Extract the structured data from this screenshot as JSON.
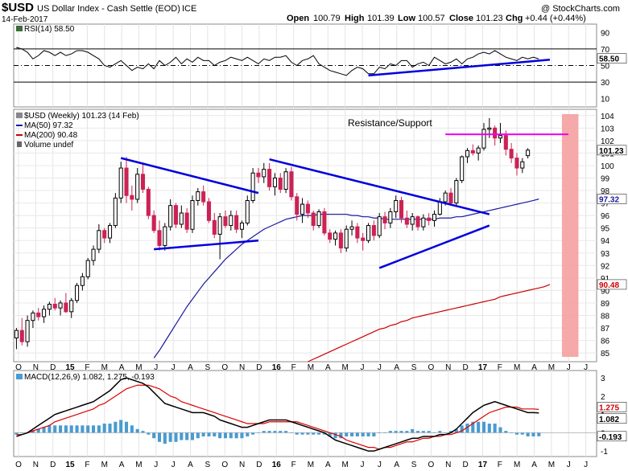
{
  "header": {
    "symbol": "$USD",
    "name": "US Dollar Index - Cash Settle (EOD)",
    "exchange": "ICE",
    "date": "14-Feb-2017",
    "open_label": "Open",
    "open": "100.79",
    "high_label": "High",
    "high": "101.39",
    "low_label": "Low",
    "low": "100.57",
    "close_label": "Close",
    "close": "101.23",
    "chg_label": "Chg",
    "chg": "+0.44 (+0.44%)",
    "watermark": "@ StockCharts.com"
  },
  "rsi": {
    "label": "RSI(14) 58.50",
    "value_tag": "58.50",
    "ticks": [
      "90",
      "70",
      "50",
      "30",
      "10"
    ],
    "levels": {
      "upper": 70,
      "mid": 50,
      "lower": 30
    },
    "values": [
      72,
      70,
      66,
      58,
      62,
      68,
      66,
      62,
      66,
      62,
      64,
      68,
      68,
      66,
      62,
      58,
      50,
      48,
      52,
      56,
      50,
      44,
      48,
      46,
      52,
      46,
      56,
      50,
      54,
      60,
      52,
      58,
      54,
      60,
      56,
      56,
      50,
      54,
      56,
      60,
      58,
      56,
      60,
      56,
      52,
      58,
      56,
      60,
      60,
      62,
      54,
      50,
      56,
      58,
      62,
      52,
      48,
      44,
      42,
      40,
      38,
      44,
      48,
      46,
      40,
      40,
      48,
      46,
      52,
      50,
      56,
      56,
      48,
      52,
      54,
      50,
      60,
      56,
      52,
      54,
      58,
      52,
      58,
      60,
      64,
      66,
      64,
      68,
      64,
      60,
      58,
      56,
      60,
      58,
      60,
      58
    ],
    "color": "#000000",
    "fill_color": "#3d6b3a"
  },
  "price": {
    "label_main": "$USD (Weekly) 101.23 (14 Feb)",
    "label_ma50": "MA(50) 97.32",
    "label_ma200": "MA(200) 90.48",
    "label_volume": "Volume undef",
    "annotation": "Resistance/Support",
    "last_tag": "101.23",
    "ma50_tag": "97.32",
    "ma200_tag": "90.48",
    "ticks": [
      "104",
      "103",
      "102",
      "101",
      "100",
      "99",
      "98",
      "97",
      "96",
      "95",
      "94",
      "93",
      "92",
      "91",
      "90",
      "89",
      "88",
      "87",
      "86",
      "85"
    ],
    "up_color": "#000000",
    "down_color": "#cc2255",
    "ma50_color": "#1a1aa0",
    "ma200_color": "#cc0000",
    "trendline_color": "#0000dd",
    "resistance_color": "#ee00ee",
    "shade_color": "#f4a0a0"
  },
  "macd": {
    "label": "MACD(12,26,9) 1.082, 1.275, -0.193",
    "macd_tag": "1.082",
    "signal_tag": "1.275",
    "hist_tag": "-0.193",
    "ticks": [
      "3",
      "2",
      "1",
      "0",
      "-1"
    ],
    "macd_color": "#000000",
    "signal_color": "#dd0000",
    "hist_color": "#4a9bcf"
  },
  "xaxis": {
    "months": [
      "O",
      "N",
      "D",
      "15",
      "F",
      "M",
      "A",
      "M",
      "J",
      "J",
      "A",
      "S",
      "O",
      "N",
      "D",
      "16",
      "F",
      "M",
      "A",
      "M",
      "J",
      "J",
      "A",
      "S",
      "O",
      "N",
      "D",
      "17",
      "F",
      "M",
      "A",
      "M",
      "J",
      "J"
    ]
  },
  "chart_data": {
    "type": "candlestick",
    "title": "$USD US Dollar Index - Cash Settle (EOD) ICE",
    "interval": "weekly",
    "x_start": "2014-10",
    "ylim": [
      84.3,
      104.5
    ],
    "candles": [
      {
        "o": 86.2,
        "h": 87.0,
        "l": 85.3,
        "c": 86.8
      },
      {
        "o": 86.8,
        "h": 87.8,
        "l": 85.6,
        "c": 85.9
      },
      {
        "o": 85.9,
        "h": 88.0,
        "l": 85.5,
        "c": 87.6
      },
      {
        "o": 87.6,
        "h": 88.4,
        "l": 87.0,
        "c": 88.2
      },
      {
        "o": 88.2,
        "h": 88.6,
        "l": 87.6,
        "c": 87.9
      },
      {
        "o": 87.9,
        "h": 88.8,
        "l": 87.4,
        "c": 88.5
      },
      {
        "o": 88.5,
        "h": 89.1,
        "l": 88.0,
        "c": 88.9
      },
      {
        "o": 88.9,
        "h": 89.4,
        "l": 88.4,
        "c": 88.6
      },
      {
        "o": 88.6,
        "h": 89.2,
        "l": 88.0,
        "c": 89.0
      },
      {
        "o": 89.0,
        "h": 89.8,
        "l": 88.2,
        "c": 88.3
      },
      {
        "o": 88.3,
        "h": 89.4,
        "l": 87.8,
        "c": 89.2
      },
      {
        "o": 89.2,
        "h": 90.6,
        "l": 89.0,
        "c": 90.4
      },
      {
        "o": 90.4,
        "h": 91.4,
        "l": 90.0,
        "c": 91.1
      },
      {
        "o": 91.1,
        "h": 92.6,
        "l": 90.9,
        "c": 92.4
      },
      {
        "o": 92.4,
        "h": 93.6,
        "l": 92.0,
        "c": 93.3
      },
      {
        "o": 93.3,
        "h": 95.3,
        "l": 93.0,
        "c": 94.8
      },
      {
        "o": 94.8,
        "h": 95.0,
        "l": 93.8,
        "c": 94.2
      },
      {
        "o": 94.2,
        "h": 95.4,
        "l": 93.8,
        "c": 95.2
      },
      {
        "o": 95.2,
        "h": 97.8,
        "l": 95.0,
        "c": 97.4
      },
      {
        "o": 97.4,
        "h": 100.3,
        "l": 97.0,
        "c": 99.8
      },
      {
        "o": 99.8,
        "h": 100.7,
        "l": 97.0,
        "c": 97.6
      },
      {
        "o": 97.6,
        "h": 98.4,
        "l": 96.4,
        "c": 97.3
      },
      {
        "o": 97.3,
        "h": 99.8,
        "l": 97.0,
        "c": 99.3
      },
      {
        "o": 99.3,
        "h": 100.2,
        "l": 97.8,
        "c": 98.1
      },
      {
        "o": 98.1,
        "h": 98.3,
        "l": 95.7,
        "c": 96.0
      },
      {
        "o": 96.0,
        "h": 96.4,
        "l": 94.6,
        "c": 94.8
      },
      {
        "o": 94.8,
        "h": 95.6,
        "l": 93.2,
        "c": 93.6
      },
      {
        "o": 93.6,
        "h": 95.4,
        "l": 93.2,
        "c": 95.1
      },
      {
        "o": 95.1,
        "h": 97.3,
        "l": 94.8,
        "c": 96.8
      },
      {
        "o": 96.8,
        "h": 97.0,
        "l": 95.0,
        "c": 95.3
      },
      {
        "o": 95.3,
        "h": 96.8,
        "l": 95.0,
        "c": 96.2
      },
      {
        "o": 96.2,
        "h": 96.6,
        "l": 94.6,
        "c": 94.9
      },
      {
        "o": 94.9,
        "h": 97.6,
        "l": 94.6,
        "c": 97.2
      },
      {
        "o": 97.2,
        "h": 98.2,
        "l": 96.8,
        "c": 97.9
      },
      {
        "o": 97.9,
        "h": 98.4,
        "l": 96.8,
        "c": 97.1
      },
      {
        "o": 97.1,
        "h": 97.4,
        "l": 95.4,
        "c": 95.6
      },
      {
        "o": 95.6,
        "h": 96.2,
        "l": 94.2,
        "c": 94.5
      },
      {
        "o": 94.5,
        "h": 96.2,
        "l": 92.5,
        "c": 95.9
      },
      {
        "o": 95.9,
        "h": 96.4,
        "l": 95.0,
        "c": 95.2
      },
      {
        "o": 95.2,
        "h": 96.4,
        "l": 94.8,
        "c": 96.0
      },
      {
        "o": 96.0,
        "h": 96.4,
        "l": 94.6,
        "c": 94.9
      },
      {
        "o": 94.9,
        "h": 95.6,
        "l": 94.2,
        "c": 95.4
      },
      {
        "o": 95.4,
        "h": 97.6,
        "l": 95.2,
        "c": 97.2
      },
      {
        "o": 97.2,
        "h": 99.8,
        "l": 97.0,
        "c": 99.4
      },
      {
        "o": 99.4,
        "h": 99.8,
        "l": 98.6,
        "c": 99.1
      },
      {
        "o": 99.1,
        "h": 100.2,
        "l": 98.6,
        "c": 99.7
      },
      {
        "o": 99.7,
        "h": 100.2,
        "l": 98.0,
        "c": 98.3
      },
      {
        "o": 98.3,
        "h": 99.4,
        "l": 97.6,
        "c": 99.0
      },
      {
        "o": 99.0,
        "h": 99.4,
        "l": 97.8,
        "c": 98.1
      },
      {
        "o": 98.1,
        "h": 99.8,
        "l": 97.8,
        "c": 99.5
      },
      {
        "o": 99.5,
        "h": 99.9,
        "l": 97.2,
        "c": 97.5
      },
      {
        "o": 97.5,
        "h": 97.8,
        "l": 95.6,
        "c": 96.1
      },
      {
        "o": 96.1,
        "h": 97.4,
        "l": 95.4,
        "c": 96.9
      },
      {
        "o": 96.9,
        "h": 97.2,
        "l": 95.8,
        "c": 96.2
      },
      {
        "o": 96.2,
        "h": 96.4,
        "l": 94.8,
        "c": 95.2
      },
      {
        "o": 95.2,
        "h": 96.5,
        "l": 95.0,
        "c": 96.3
      },
      {
        "o": 96.3,
        "h": 96.6,
        "l": 94.4,
        "c": 94.6
      },
      {
        "o": 94.6,
        "h": 94.9,
        "l": 93.8,
        "c": 94.1
      },
      {
        "o": 94.1,
        "h": 94.8,
        "l": 93.6,
        "c": 94.6
      },
      {
        "o": 94.6,
        "h": 94.9,
        "l": 93.0,
        "c": 93.4
      },
      {
        "o": 93.4,
        "h": 95.2,
        "l": 93.1,
        "c": 94.9
      },
      {
        "o": 94.9,
        "h": 95.6,
        "l": 94.4,
        "c": 95.1
      },
      {
        "o": 95.1,
        "h": 95.4,
        "l": 93.8,
        "c": 94.2
      },
      {
        "o": 94.2,
        "h": 94.6,
        "l": 93.2,
        "c": 94.0
      },
      {
        "o": 94.0,
        "h": 95.4,
        "l": 93.8,
        "c": 95.2
      },
      {
        "o": 95.2,
        "h": 95.6,
        "l": 94.0,
        "c": 94.4
      },
      {
        "o": 94.4,
        "h": 96.2,
        "l": 94.2,
        "c": 95.9
      },
      {
        "o": 95.9,
        "h": 96.3,
        "l": 94.9,
        "c": 95.4
      },
      {
        "o": 95.4,
        "h": 96.6,
        "l": 95.0,
        "c": 96.3
      },
      {
        "o": 96.3,
        "h": 97.6,
        "l": 95.8,
        "c": 97.2
      },
      {
        "o": 97.2,
        "h": 97.5,
        "l": 95.4,
        "c": 95.8
      },
      {
        "o": 95.8,
        "h": 96.4,
        "l": 95.0,
        "c": 95.3
      },
      {
        "o": 95.3,
        "h": 96.2,
        "l": 94.8,
        "c": 95.9
      },
      {
        "o": 95.9,
        "h": 96.0,
        "l": 94.8,
        "c": 95.1
      },
      {
        "o": 95.1,
        "h": 96.1,
        "l": 94.8,
        "c": 95.8
      },
      {
        "o": 95.8,
        "h": 96.2,
        "l": 95.2,
        "c": 95.6
      },
      {
        "o": 95.6,
        "h": 96.4,
        "l": 95.1,
        "c": 96.1
      },
      {
        "o": 96.1,
        "h": 97.4,
        "l": 96.0,
        "c": 97.1
      },
      {
        "o": 97.1,
        "h": 98.0,
        "l": 96.8,
        "c": 97.8
      },
      {
        "o": 97.8,
        "h": 98.2,
        "l": 96.8,
        "c": 97.0
      },
      {
        "o": 97.0,
        "h": 99.0,
        "l": 96.8,
        "c": 98.8
      },
      {
        "o": 98.8,
        "h": 100.8,
        "l": 98.6,
        "c": 100.7
      },
      {
        "o": 100.7,
        "h": 101.4,
        "l": 100.2,
        "c": 101.2
      },
      {
        "o": 101.2,
        "h": 101.7,
        "l": 100.8,
        "c": 101.0
      },
      {
        "o": 101.0,
        "h": 101.6,
        "l": 100.4,
        "c": 101.4
      },
      {
        "o": 101.4,
        "h": 103.4,
        "l": 101.2,
        "c": 102.9
      },
      {
        "o": 102.9,
        "h": 103.8,
        "l": 102.2,
        "c": 103.0
      },
      {
        "o": 103.0,
        "h": 103.2,
        "l": 101.6,
        "c": 102.2
      },
      {
        "o": 102.2,
        "h": 103.4,
        "l": 101.8,
        "c": 102.4
      },
      {
        "o": 102.4,
        "h": 102.8,
        "l": 100.8,
        "c": 101.3
      },
      {
        "o": 101.3,
        "h": 101.8,
        "l": 100.2,
        "c": 100.6
      },
      {
        "o": 100.6,
        "h": 101.0,
        "l": 99.2,
        "c": 99.8
      },
      {
        "o": 99.8,
        "h": 100.6,
        "l": 99.4,
        "c": 100.3
      },
      {
        "o": 100.79,
        "h": 101.39,
        "l": 100.57,
        "c": 101.23
      }
    ],
    "ma50": [
      null,
      null,
      null,
      null,
      null,
      null,
      null,
      null,
      null,
      null,
      null,
      null,
      null,
      null,
      null,
      null,
      null,
      null,
      null,
      null,
      null,
      null,
      null,
      null,
      null,
      84.6,
      85.2,
      85.9,
      86.6,
      87.3,
      88.0,
      88.7,
      89.3,
      89.9,
      90.5,
      91.0,
      91.5,
      92.0,
      92.5,
      92.9,
      93.3,
      93.7,
      94.0,
      94.3,
      94.6,
      94.9,
      95.1,
      95.3,
      95.5,
      95.7,
      95.8,
      95.9,
      96.0,
      96.0,
      96.0,
      96.1,
      96.1,
      96.1,
      96.1,
      96.1,
      96.1,
      96.0,
      96.0,
      95.9,
      95.9,
      95.8,
      95.8,
      95.7,
      95.7,
      95.7,
      95.7,
      95.7,
      95.7,
      95.7,
      95.7,
      95.7,
      95.7,
      95.8,
      95.8,
      95.8,
      95.9,
      95.9,
      96.0,
      96.1,
      96.2,
      96.3,
      96.4,
      96.5,
      96.6,
      96.7,
      96.8,
      96.9,
      97.0,
      97.1,
      97.2,
      97.32
    ],
    "ma200": [
      null,
      null,
      null,
      null,
      null,
      null,
      null,
      null,
      null,
      null,
      null,
      null,
      null,
      null,
      null,
      null,
      null,
      null,
      null,
      null,
      null,
      null,
      null,
      null,
      null,
      null,
      null,
      null,
      null,
      null,
      null,
      null,
      null,
      null,
      null,
      null,
      null,
      null,
      null,
      null,
      null,
      null,
      null,
      null,
      null,
      null,
      null,
      null,
      null,
      null,
      null,
      null,
      null,
      84.3,
      84.5,
      84.7,
      84.9,
      85.1,
      85.3,
      85.5,
      85.7,
      85.9,
      86.1,
      86.3,
      86.5,
      86.7,
      86.9,
      87.0,
      87.2,
      87.3,
      87.5,
      87.6,
      87.8,
      87.9,
      88.0,
      88.1,
      88.2,
      88.3,
      88.4,
      88.5,
      88.6,
      88.7,
      88.8,
      88.9,
      89.0,
      89.1,
      89.2,
      89.3,
      89.5,
      89.6,
      89.7,
      89.8,
      89.9,
      90.0,
      90.1,
      90.2,
      90.3,
      90.48
    ],
    "trendlines": [
      {
        "from": [
          19,
          100.6
        ],
        "to": [
          44,
          97.8
        ]
      },
      {
        "from": [
          25,
          93.3
        ],
        "to": [
          44,
          94.0
        ]
      },
      {
        "from": [
          46,
          100.5
        ],
        "to": [
          86,
          96.1
        ]
      },
      {
        "from": [
          66,
          91.8
        ],
        "to": [
          86,
          95.2
        ]
      }
    ],
    "rsi_trendlines": [
      {
        "from": [
          64,
          38
        ],
        "to": [
          97,
          57
        ]
      }
    ],
    "resistance_level": 102.5,
    "resistance_from": 78,
    "resistance_to": 106,
    "shade_from": 99.2,
    "shade_to": 102.2,
    "macd_line": [
      -0.2,
      -0.1,
      0.0,
      0.2,
      0.4,
      0.6,
      0.8,
      1.0,
      1.1,
      1.2,
      1.3,
      1.4,
      1.5,
      1.6,
      1.7,
      1.9,
      2.1,
      2.3,
      2.6,
      2.9,
      3.0,
      2.9,
      2.8,
      2.7,
      2.5,
      2.2,
      1.9,
      1.6,
      1.5,
      1.4,
      1.3,
      1.2,
      1.1,
      1.1,
      1.1,
      1.0,
      0.9,
      0.7,
      0.6,
      0.5,
      0.4,
      0.3,
      0.3,
      0.4,
      0.5,
      0.6,
      0.7,
      0.7,
      0.7,
      0.7,
      0.6,
      0.5,
      0.4,
      0.3,
      0.2,
      0.1,
      0.0,
      -0.2,
      -0.4,
      -0.5,
      -0.6,
      -0.7,
      -0.8,
      -0.9,
      -1.0,
      -1.0,
      -0.9,
      -0.8,
      -0.7,
      -0.6,
      -0.5,
      -0.4,
      -0.3,
      -0.3,
      -0.2,
      -0.2,
      -0.2,
      -0.1,
      -0.1,
      0.0,
      0.2,
      0.5,
      0.8,
      1.1,
      1.3,
      1.5,
      1.6,
      1.7,
      1.6,
      1.5,
      1.4,
      1.3,
      1.2,
      1.1,
      1.1,
      1.082
    ],
    "signal_line": [
      -0.1,
      -0.1,
      0.0,
      0.1,
      0.2,
      0.3,
      0.4,
      0.6,
      0.7,
      0.8,
      0.9,
      1.0,
      1.1,
      1.2,
      1.3,
      1.5,
      1.6,
      1.8,
      2.0,
      2.2,
      2.4,
      2.5,
      2.6,
      2.6,
      2.6,
      2.5,
      2.4,
      2.2,
      2.0,
      1.9,
      1.7,
      1.6,
      1.5,
      1.4,
      1.3,
      1.2,
      1.1,
      1.0,
      0.9,
      0.8,
      0.7,
      0.6,
      0.5,
      0.5,
      0.5,
      0.5,
      0.6,
      0.6,
      0.6,
      0.6,
      0.6,
      0.6,
      0.5,
      0.4,
      0.3,
      0.2,
      0.1,
      0.0,
      -0.1,
      -0.2,
      -0.4,
      -0.5,
      -0.6,
      -0.7,
      -0.8,
      -0.8,
      -0.9,
      -0.8,
      -0.8,
      -0.7,
      -0.6,
      -0.5,
      -0.5,
      -0.4,
      -0.3,
      -0.3,
      -0.2,
      -0.2,
      -0.1,
      -0.1,
      0.0,
      0.1,
      0.3,
      0.5,
      0.7,
      0.9,
      1.1,
      1.2,
      1.3,
      1.4,
      1.4,
      1.4,
      1.3,
      1.3,
      1.3,
      1.275
    ],
    "macd_ylim": [
      -1.3,
      3.4
    ],
    "rsi_ylim": [
      0,
      100
    ]
  }
}
